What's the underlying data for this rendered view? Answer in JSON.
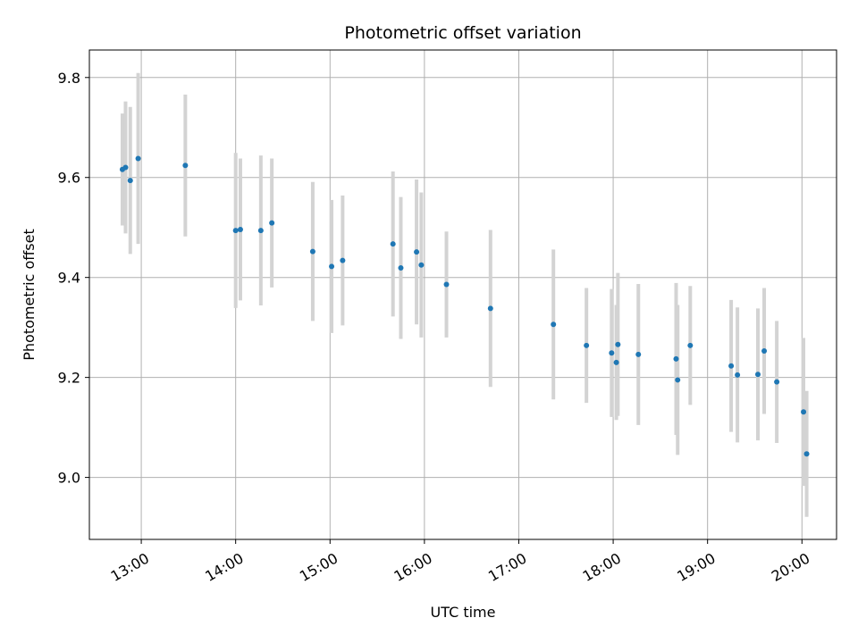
{
  "chart_data": {
    "type": "scatter",
    "title": "Photometric offset variation",
    "xlabel": "UTC time",
    "ylabel": "Photometric offset",
    "grid": true,
    "x_tick_labels": [
      "13:00",
      "14:00",
      "15:00",
      "16:00",
      "17:00",
      "18:00",
      "19:00",
      "20:00"
    ],
    "y_tick_labels": [
      "9.0",
      "9.2",
      "9.4",
      "9.6",
      "9.8"
    ],
    "y_ticks": [
      9.0,
      9.2,
      9.4,
      9.6,
      9.8
    ],
    "xlim": [
      "12:27",
      "20:22"
    ],
    "ylim": [
      8.876,
      9.855
    ],
    "point_color": "#1f77b4",
    "errorbar_color": "#d3d3d3",
    "points": [
      {
        "x": "12:48",
        "y": 9.616,
        "err": 0.112
      },
      {
        "x": "12:50",
        "y": 9.62,
        "err": 0.132
      },
      {
        "x": "12:53",
        "y": 9.594,
        "err": 0.147
      },
      {
        "x": "12:58",
        "y": 9.638,
        "err": 0.171
      },
      {
        "x": "13:28",
        "y": 9.624,
        "err": 0.142
      },
      {
        "x": "14:00",
        "y": 9.494,
        "err": 0.155
      },
      {
        "x": "14:03",
        "y": 9.496,
        "err": 0.142
      },
      {
        "x": "14:16",
        "y": 9.494,
        "err": 0.15
      },
      {
        "x": "14:23",
        "y": 9.509,
        "err": 0.129
      },
      {
        "x": "14:49",
        "y": 9.452,
        "err": 0.139
      },
      {
        "x": "15:01",
        "y": 9.422,
        "err": 0.133
      },
      {
        "x": "15:08",
        "y": 9.434,
        "err": 0.13
      },
      {
        "x": "15:40",
        "y": 9.467,
        "err": 0.145
      },
      {
        "x": "15:45",
        "y": 9.419,
        "err": 0.142
      },
      {
        "x": "15:55",
        "y": 9.451,
        "err": 0.145
      },
      {
        "x": "15:58",
        "y": 9.425,
        "err": 0.145
      },
      {
        "x": "16:14",
        "y": 9.386,
        "err": 0.106
      },
      {
        "x": "16:42",
        "y": 9.338,
        "err": 0.157
      },
      {
        "x": "17:22",
        "y": 9.306,
        "err": 0.15
      },
      {
        "x": "17:43",
        "y": 9.264,
        "err": 0.115
      },
      {
        "x": "17:59",
        "y": 9.249,
        "err": 0.128
      },
      {
        "x": "18:02",
        "y": 9.23,
        "err": 0.115
      },
      {
        "x": "18:03",
        "y": 9.266,
        "err": 0.143
      },
      {
        "x": "18:16",
        "y": 9.246,
        "err": 0.141
      },
      {
        "x": "18:40",
        "y": 9.237,
        "err": 0.152
      },
      {
        "x": "18:41",
        "y": 9.195,
        "err": 0.15
      },
      {
        "x": "18:49",
        "y": 9.264,
        "err": 0.119
      },
      {
        "x": "19:15",
        "y": 9.223,
        "err": 0.132
      },
      {
        "x": "19:19",
        "y": 9.205,
        "err": 0.135
      },
      {
        "x": "19:32",
        "y": 9.206,
        "err": 0.132
      },
      {
        "x": "19:36",
        "y": 9.253,
        "err": 0.126
      },
      {
        "x": "19:44",
        "y": 9.191,
        "err": 0.122
      },
      {
        "x": "20:01",
        "y": 9.131,
        "err": 0.148
      },
      {
        "x": "20:03",
        "y": 9.047,
        "err": 0.126
      }
    ]
  }
}
